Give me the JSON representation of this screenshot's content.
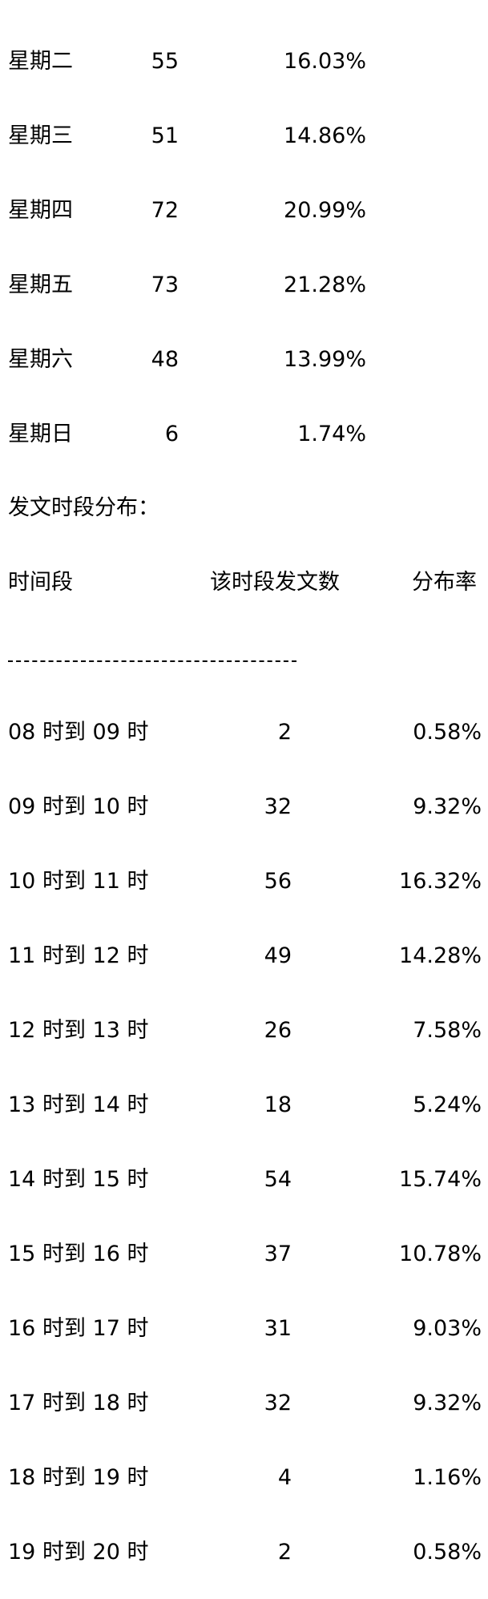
{
  "weekday_rows": [
    {
      "day": "星期二",
      "count": "55",
      "rate": "16.03%"
    },
    {
      "day": "星期三",
      "count": "51",
      "rate": "14.86%"
    },
    {
      "day": "星期四",
      "count": "72",
      "rate": "20.99%"
    },
    {
      "day": "星期五",
      "count": "73",
      "rate": "21.28%"
    },
    {
      "day": "星期六",
      "count": "48",
      "rate": "13.99%"
    },
    {
      "day": "星期日",
      "count": "6",
      "rate": "1.74%"
    }
  ],
  "time_section": {
    "title": "发文时段分布：",
    "headers": {
      "slot": "时间段",
      "count": "该时段发文数",
      "rate": "分布率"
    }
  },
  "time_rows": [
    {
      "slot": "08 时到 09 时",
      "count": "2",
      "rate": "0.58%"
    },
    {
      "slot": "09 时到 10 时",
      "count": "32",
      "rate": "9.32%"
    },
    {
      "slot": "10 时到 11 时",
      "count": "56",
      "rate": "16.32%"
    },
    {
      "slot": "11 时到 12 时",
      "count": "49",
      "rate": "14.28%"
    },
    {
      "slot": "12 时到 13 时",
      "count": "26",
      "rate": "7.58%"
    },
    {
      "slot": "13 时到 14 时",
      "count": "18",
      "rate": "5.24%"
    },
    {
      "slot": "14 时到 15 时",
      "count": "54",
      "rate": "15.74%"
    },
    {
      "slot": "15 时到 16 时",
      "count": "37",
      "rate": "10.78%"
    },
    {
      "slot": "16 时到 17 时",
      "count": "31",
      "rate": "9.03%"
    },
    {
      "slot": "17 时到 18 时",
      "count": "32",
      "rate": "9.32%"
    },
    {
      "slot": "18 时到 19 时",
      "count": "4",
      "rate": "1.16%"
    },
    {
      "slot": "19 时到 20 时",
      "count": "2",
      "rate": "0.58%"
    }
  ]
}
